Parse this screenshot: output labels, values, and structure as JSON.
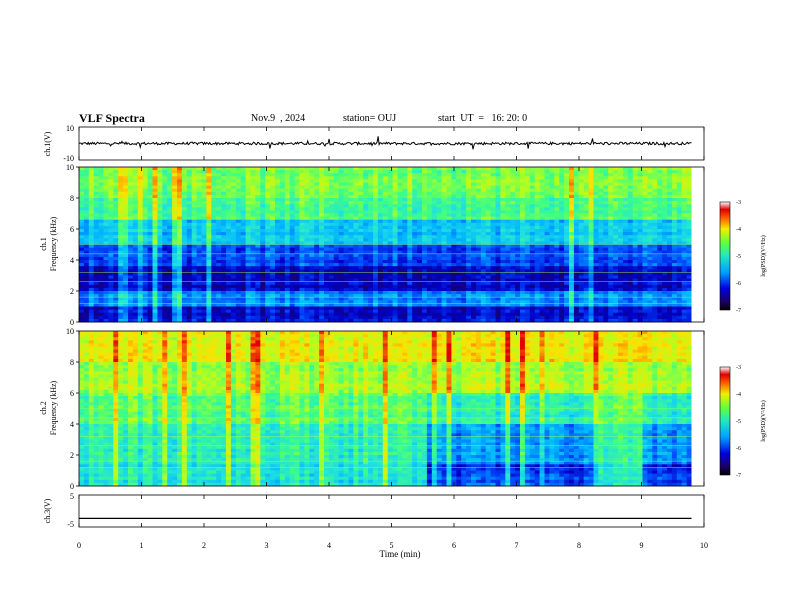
{
  "header": {
    "title": "VLF Spectra",
    "date": "Nov.9  , 2024",
    "station": "station= OUJ",
    "start_ut": "start  UT  =   16: 20: 0"
  },
  "chart_data": [
    {
      "type": "line",
      "panel": "ch1-waveform",
      "ylabel": "ch.1(V)",
      "ylim": [
        -10,
        10
      ],
      "yticks": [
        "10",
        "-10"
      ],
      "xlim": [
        0,
        10
      ],
      "series": [
        {
          "values_note_free": true,
          "x": [
            0,
            9.8
          ],
          "y": [
            0,
            0
          ]
        }
      ]
    },
    {
      "type": "heatmap",
      "panel": "ch1-spectrogram",
      "ylabel": "ch.1\nFrequency (kHz)",
      "ylabel_lines": [
        "ch.1",
        "Frequency (kHz)"
      ],
      "ylim": [
        0,
        10
      ],
      "yticks": [
        "0",
        "2",
        "4",
        "6",
        "8",
        "10"
      ],
      "xlim": [
        0,
        10
      ],
      "colorbar": {
        "label": "log(PSD)(V²/Hz)",
        "range": [
          -7,
          -3
        ],
        "ticks": [
          "-3",
          "-4",
          "-5",
          "-6",
          "-7"
        ]
      }
    },
    {
      "type": "heatmap",
      "panel": "ch2-spectrogram",
      "ylabel_lines": [
        "ch.2",
        "Frequency (kHz)"
      ],
      "ylim": [
        0,
        10
      ],
      "yticks": [
        "0",
        "2",
        "4",
        "6",
        "8",
        "10"
      ],
      "xlim": [
        0,
        10
      ],
      "colorbar": {
        "label": "log(PSD)(V²/Hz)",
        "range": [
          -7,
          -3
        ],
        "ticks": [
          "-3",
          "-4",
          "-5",
          "-6",
          "-7"
        ]
      }
    },
    {
      "type": "line",
      "panel": "ch3-waveform",
      "ylabel": "ch.3(V)",
      "ylim": [
        -5,
        5
      ],
      "yticks": [
        "5",
        "0",
        "-5"
      ],
      "xlim": [
        0,
        10
      ],
      "series": [
        {
          "x": [
            0,
            9.8
          ],
          "y": [
            -2.3,
            -2.3
          ]
        }
      ]
    }
  ],
  "xaxis": {
    "label": "Time (min)",
    "ticks": [
      "0",
      "1",
      "2",
      "3",
      "4",
      "5",
      "6",
      "7",
      "8",
      "9",
      "10"
    ]
  },
  "colors": {
    "colormap": [
      "#1a0066",
      "#0000c8",
      "#0050ff",
      "#00b4ff",
      "#20e0e0",
      "#40ff80",
      "#b0ff20",
      "#ffe000",
      "#ff8000",
      "#e00000",
      "#c8c8c8"
    ]
  }
}
